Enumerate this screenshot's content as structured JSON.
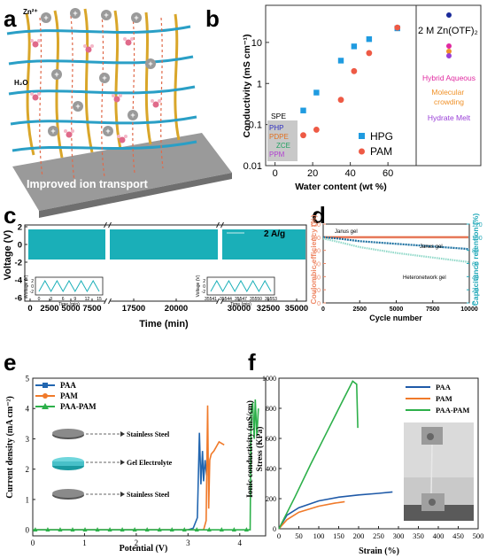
{
  "panels": {
    "a": {
      "letter": "a",
      "ion_label": "Zn²⁺",
      "water_label": "H₂O",
      "caption": "Improved ion transport",
      "colors": {
        "fiber_blue": "#2a9fc6",
        "fiber_gold": "#d9a62a",
        "base": "#8a8a8a"
      }
    },
    "b": {
      "letter": "b",
      "ylabel": "Conductivity (mS cm⁻¹)",
      "xlabel": "Water content (wt %)",
      "yticks": [
        "0.01",
        "0.1",
        "1",
        "10"
      ],
      "xticks": [
        "0",
        "20",
        "40",
        "60"
      ],
      "legend": [
        {
          "name": "HPG",
          "color": "#1f9be0"
        },
        {
          "name": "PAM",
          "color": "#ee5a45"
        }
      ],
      "spe_box": {
        "title": "SPE",
        "items": [
          "PHP",
          "PDPE",
          "ZCE",
          "PPM"
        ],
        "colors": [
          "#3030c0",
          "#e07020",
          "#20a060",
          "#b040d0"
        ]
      },
      "right_box": {
        "title": "2 M Zn(OTF)₂",
        "items": [
          {
            "text": "Hybrid Aqueous",
            "color": "#e02aa0"
          },
          {
            "text": "Molecular\ncrowding",
            "color": "#f0922a"
          },
          {
            "text": "Hydrate Melt",
            "color": "#9a40d8"
          }
        ]
      }
    },
    "c": {
      "letter": "c",
      "ylabel": "Voltage (V)",
      "xlabel": "Time (min)",
      "yticks": [
        "2",
        "0",
        "-2",
        "-4",
        "-6"
      ],
      "xticks": [
        "0",
        "2500",
        "5000",
        "7500",
        "17500",
        "20000",
        "30000",
        "32500",
        "35000"
      ],
      "legend": "2 A/g",
      "band_color": "#1aafb8",
      "inset1": {
        "ylabel": "Voltage (V)",
        "xlabel": "Time (min)",
        "xticks": [
          "0",
          "3",
          "6",
          "9",
          "12",
          "15"
        ],
        "yticks": [
          "2",
          "0",
          "-2"
        ]
      },
      "inset2": {
        "ylabel": "Voltage (V)",
        "xlabel": "Time (min)",
        "xticks": [
          "35541",
          "35544",
          "35547",
          "35550",
          "35553"
        ],
        "yticks": [
          "2",
          "0",
          "-2"
        ]
      }
    },
    "d": {
      "letter": "d",
      "ylabel_left": "Coulombic efficiency (%)",
      "ylabel_right": "Capacitance retention (%)",
      "xlabel": "Cycle number",
      "yticks_left": [
        "0",
        "20",
        "40",
        "60",
        "80",
        "100",
        "120"
      ],
      "yticks_right": [
        "0",
        "20",
        "40",
        "60",
        "80",
        "100",
        "120"
      ],
      "xticks": [
        "0",
        "2500",
        "5000",
        "7500",
        "10000"
      ],
      "labels": [
        "Janus gel",
        "Janus gel",
        "Heteronetwork gel"
      ],
      "colors": {
        "left_axis": "#ee8866",
        "right_axis": "#20a8b8"
      }
    },
    "e": {
      "letter": "e",
      "ylabel": "Current density (mA cm⁻²)",
      "xlabel": "Potential (V)",
      "yticks": [
        "0",
        "1",
        "2",
        "3",
        "4",
        "5"
      ],
      "xticks": [
        "0",
        "1",
        "2",
        "3",
        "4"
      ],
      "legend": [
        {
          "name": "PAA",
          "color": "#2266b0"
        },
        {
          "name": "PAM",
          "color": "#f07a2a"
        },
        {
          "name": "PAA-PAM",
          "color": "#2db04a"
        }
      ],
      "stack_labels": [
        "Stainless Steel",
        "Gel Electrolyte",
        "Stainless Steel"
      ]
    },
    "f": {
      "letter": "f",
      "ylabel_top": "Ionic conductivity (mS/cm)",
      "ylabel_bottom": "Stress (KPa)",
      "xlabel": "Strain (%)",
      "yticks": [
        "0",
        "200",
        "400",
        "600",
        "800",
        "1000"
      ],
      "xticks": [
        "0",
        "50",
        "100",
        "150",
        "200",
        "250",
        "300",
        "350",
        "400",
        "450",
        "500"
      ],
      "legend": [
        {
          "name": "PAA",
          "color": "#1f5aa8"
        },
        {
          "name": "PAM",
          "color": "#f07a2a"
        },
        {
          "name": "PAA-PAM",
          "color": "#2db04a"
        }
      ]
    }
  },
  "chart_data": [
    {
      "panel": "b",
      "type": "scatter",
      "xlabel": "Water content (wt %)",
      "ylabel": "Conductivity (mS cm⁻¹)",
      "xlim": [
        -5,
        75
      ],
      "ylim": [
        0.01,
        80
      ],
      "yscale": "log",
      "series": [
        {
          "name": "HPG",
          "x": [
            15,
            22,
            35,
            42,
            50,
            65
          ],
          "y": [
            0.22,
            0.6,
            3.6,
            8,
            12,
            22
          ]
        },
        {
          "name": "PAM",
          "x": [
            15,
            22,
            35,
            42,
            50,
            65
          ],
          "y": [
            0.055,
            0.075,
            0.4,
            2.0,
            5.5,
            23
          ]
        }
      ]
    },
    {
      "panel": "c",
      "type": "line",
      "xlabel": "Time (min)",
      "ylabel": "Voltage (V)",
      "segments": [
        [
          0,
          8000
        ],
        [
          15000,
          22500
        ],
        [
          29000,
          36000
        ]
      ],
      "ylim": [
        -6,
        3
      ],
      "voltage_range": [
        -2,
        2
      ]
    },
    {
      "panel": "d",
      "type": "line",
      "xlabel": "Cycle number",
      "xlim": [
        0,
        10000
      ],
      "ylim": [
        0,
        120
      ],
      "series": [
        {
          "name": "Janus gel",
          "axis": "left",
          "x": [
            0,
            10000
          ],
          "y": [
            100,
            100
          ]
        },
        {
          "name": "Janus gel",
          "axis": "right",
          "x": [
            0,
            1000,
            2500,
            5000,
            7500,
            10000
          ],
          "y": [
            100,
            98,
            94,
            90,
            86,
            82
          ]
        },
        {
          "name": "Heteronetwork gel",
          "axis": "right",
          "x": [
            0,
            1000,
            2500,
            5000,
            7500,
            10000
          ],
          "y": [
            98,
            93,
            85,
            76,
            69,
            62
          ]
        }
      ]
    },
    {
      "panel": "e",
      "type": "line",
      "xlabel": "Potential (V)",
      "ylabel": "Current density (mA cm⁻²)",
      "xlim": [
        0,
        4.5
      ],
      "ylim": [
        -0.2,
        5
      ],
      "series": [
        {
          "name": "PAA",
          "x": [
            0,
            3.0,
            3.1,
            3.18,
            3.22,
            3.25,
            3.28,
            3.3,
            3.33,
            3.36
          ],
          "y": [
            0,
            0,
            0.05,
            0.4,
            3.2,
            1.5,
            2.6,
            1.6,
            2.3,
            1.8
          ]
        },
        {
          "name": "PAM",
          "x": [
            0,
            3.3,
            3.35,
            3.38,
            3.4,
            3.42,
            3.45,
            3.5,
            3.6,
            3.7
          ],
          "y": [
            0,
            0,
            0.3,
            4.1,
            0.7,
            2.3,
            2.5,
            2.6,
            2.9,
            2.8
          ]
        },
        {
          "name": "PAA-PAM",
          "x": [
            0,
            4.2,
            4.22,
            4.25,
            4.28,
            4.3,
            4.33,
            4.36
          ],
          "y": [
            0,
            0,
            3.9,
            4.2,
            3.0,
            4.3,
            3.1,
            4.0
          ]
        }
      ]
    },
    {
      "panel": "f",
      "type": "line",
      "xlabel": "Strain (%)",
      "ylabel": "Stress (KPa)",
      "xlim": [
        0,
        500
      ],
      "ylim": [
        0,
        1000
      ],
      "series": [
        {
          "name": "PAA",
          "x": [
            0,
            20,
            50,
            100,
            150,
            200,
            250,
            285
          ],
          "y": [
            0,
            90,
            140,
            185,
            210,
            225,
            235,
            245
          ]
        },
        {
          "name": "PAM",
          "x": [
            0,
            20,
            50,
            100,
            140,
            165
          ],
          "y": [
            0,
            60,
            110,
            150,
            170,
            180
          ]
        },
        {
          "name": "PAA-PAM",
          "x": [
            0,
            40,
            80,
            120,
            160,
            185,
            195,
            198
          ],
          "y": [
            0,
            210,
            430,
            640,
            850,
            980,
            960,
            670
          ]
        }
      ]
    }
  ]
}
